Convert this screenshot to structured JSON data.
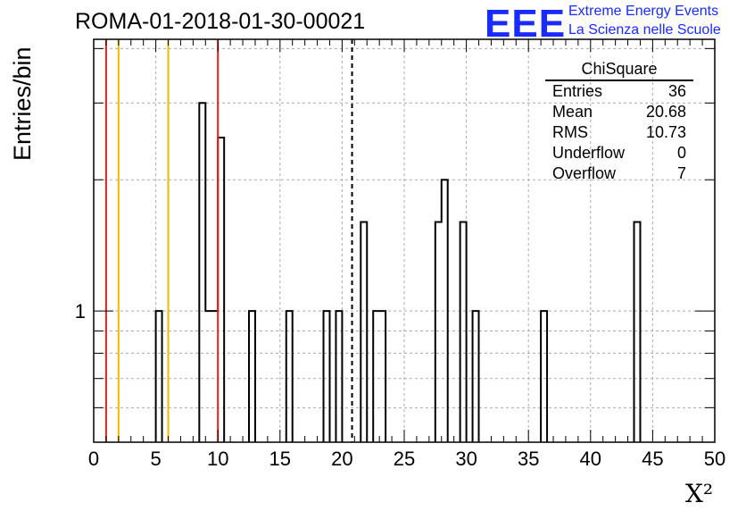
{
  "title": "ROMA-01-2018-01-30-00021",
  "logo": {
    "mark": "EEE",
    "line1": "Extreme Energy Events",
    "line2": "La Scienza nelle Scuole",
    "color": "#1a2bff"
  },
  "stats_box": {
    "name": "ChiSquare",
    "rows": [
      {
        "label": "Entries",
        "value": "36"
      },
      {
        "label": "Mean",
        "value": "20.68"
      },
      {
        "label": "RMS",
        "value": "10.73"
      },
      {
        "label": "Underflow",
        "value": "0"
      },
      {
        "label": "Overflow",
        "value": "7"
      }
    ]
  },
  "chart_data": {
    "type": "bar",
    "histogram": true,
    "xlabel": "X²",
    "ylabel": "Entries/bin",
    "xlim": [
      0,
      50
    ],
    "ylim": [
      0.5,
      4.2
    ],
    "yscale": "log",
    "xticks": [
      "0",
      "5",
      "10",
      "15",
      "20",
      "25",
      "30",
      "35",
      "40",
      "45",
      "50"
    ],
    "yticks": [
      "1"
    ],
    "grid": true,
    "bin_width": 0.5,
    "bins": [
      {
        "x": 5,
        "y": 1
      },
      {
        "x": 8.5,
        "y": 3
      },
      {
        "x": 9,
        "y": 1
      },
      {
        "x": 9.5,
        "y": 1
      },
      {
        "x": 10,
        "y": 2.5
      },
      {
        "x": 12.5,
        "y": 1
      },
      {
        "x": 15.5,
        "y": 1
      },
      {
        "x": 18.5,
        "y": 1
      },
      {
        "x": 19.5,
        "y": 1
      },
      {
        "x": 21.5,
        "y": 1.6
      },
      {
        "x": 22.5,
        "y": 1
      },
      {
        "x": 23,
        "y": 1
      },
      {
        "x": 27.5,
        "y": 1.6
      },
      {
        "x": 28,
        "y": 2
      },
      {
        "x": 29.5,
        "y": 1.6
      },
      {
        "x": 30.5,
        "y": 1
      },
      {
        "x": 36,
        "y": 1
      },
      {
        "x": 43.5,
        "y": 1.6
      }
    ],
    "vlines": [
      {
        "x": 1,
        "color": "#e8211c",
        "style": "solid"
      },
      {
        "x": 2,
        "color": "#f2b800",
        "style": "solid"
      },
      {
        "x": 6,
        "color": "#f2b800",
        "style": "solid"
      },
      {
        "x": 10,
        "color": "#e8211c",
        "style": "solid"
      },
      {
        "x": 20.8,
        "color": "#000000",
        "style": "dashed"
      }
    ]
  }
}
